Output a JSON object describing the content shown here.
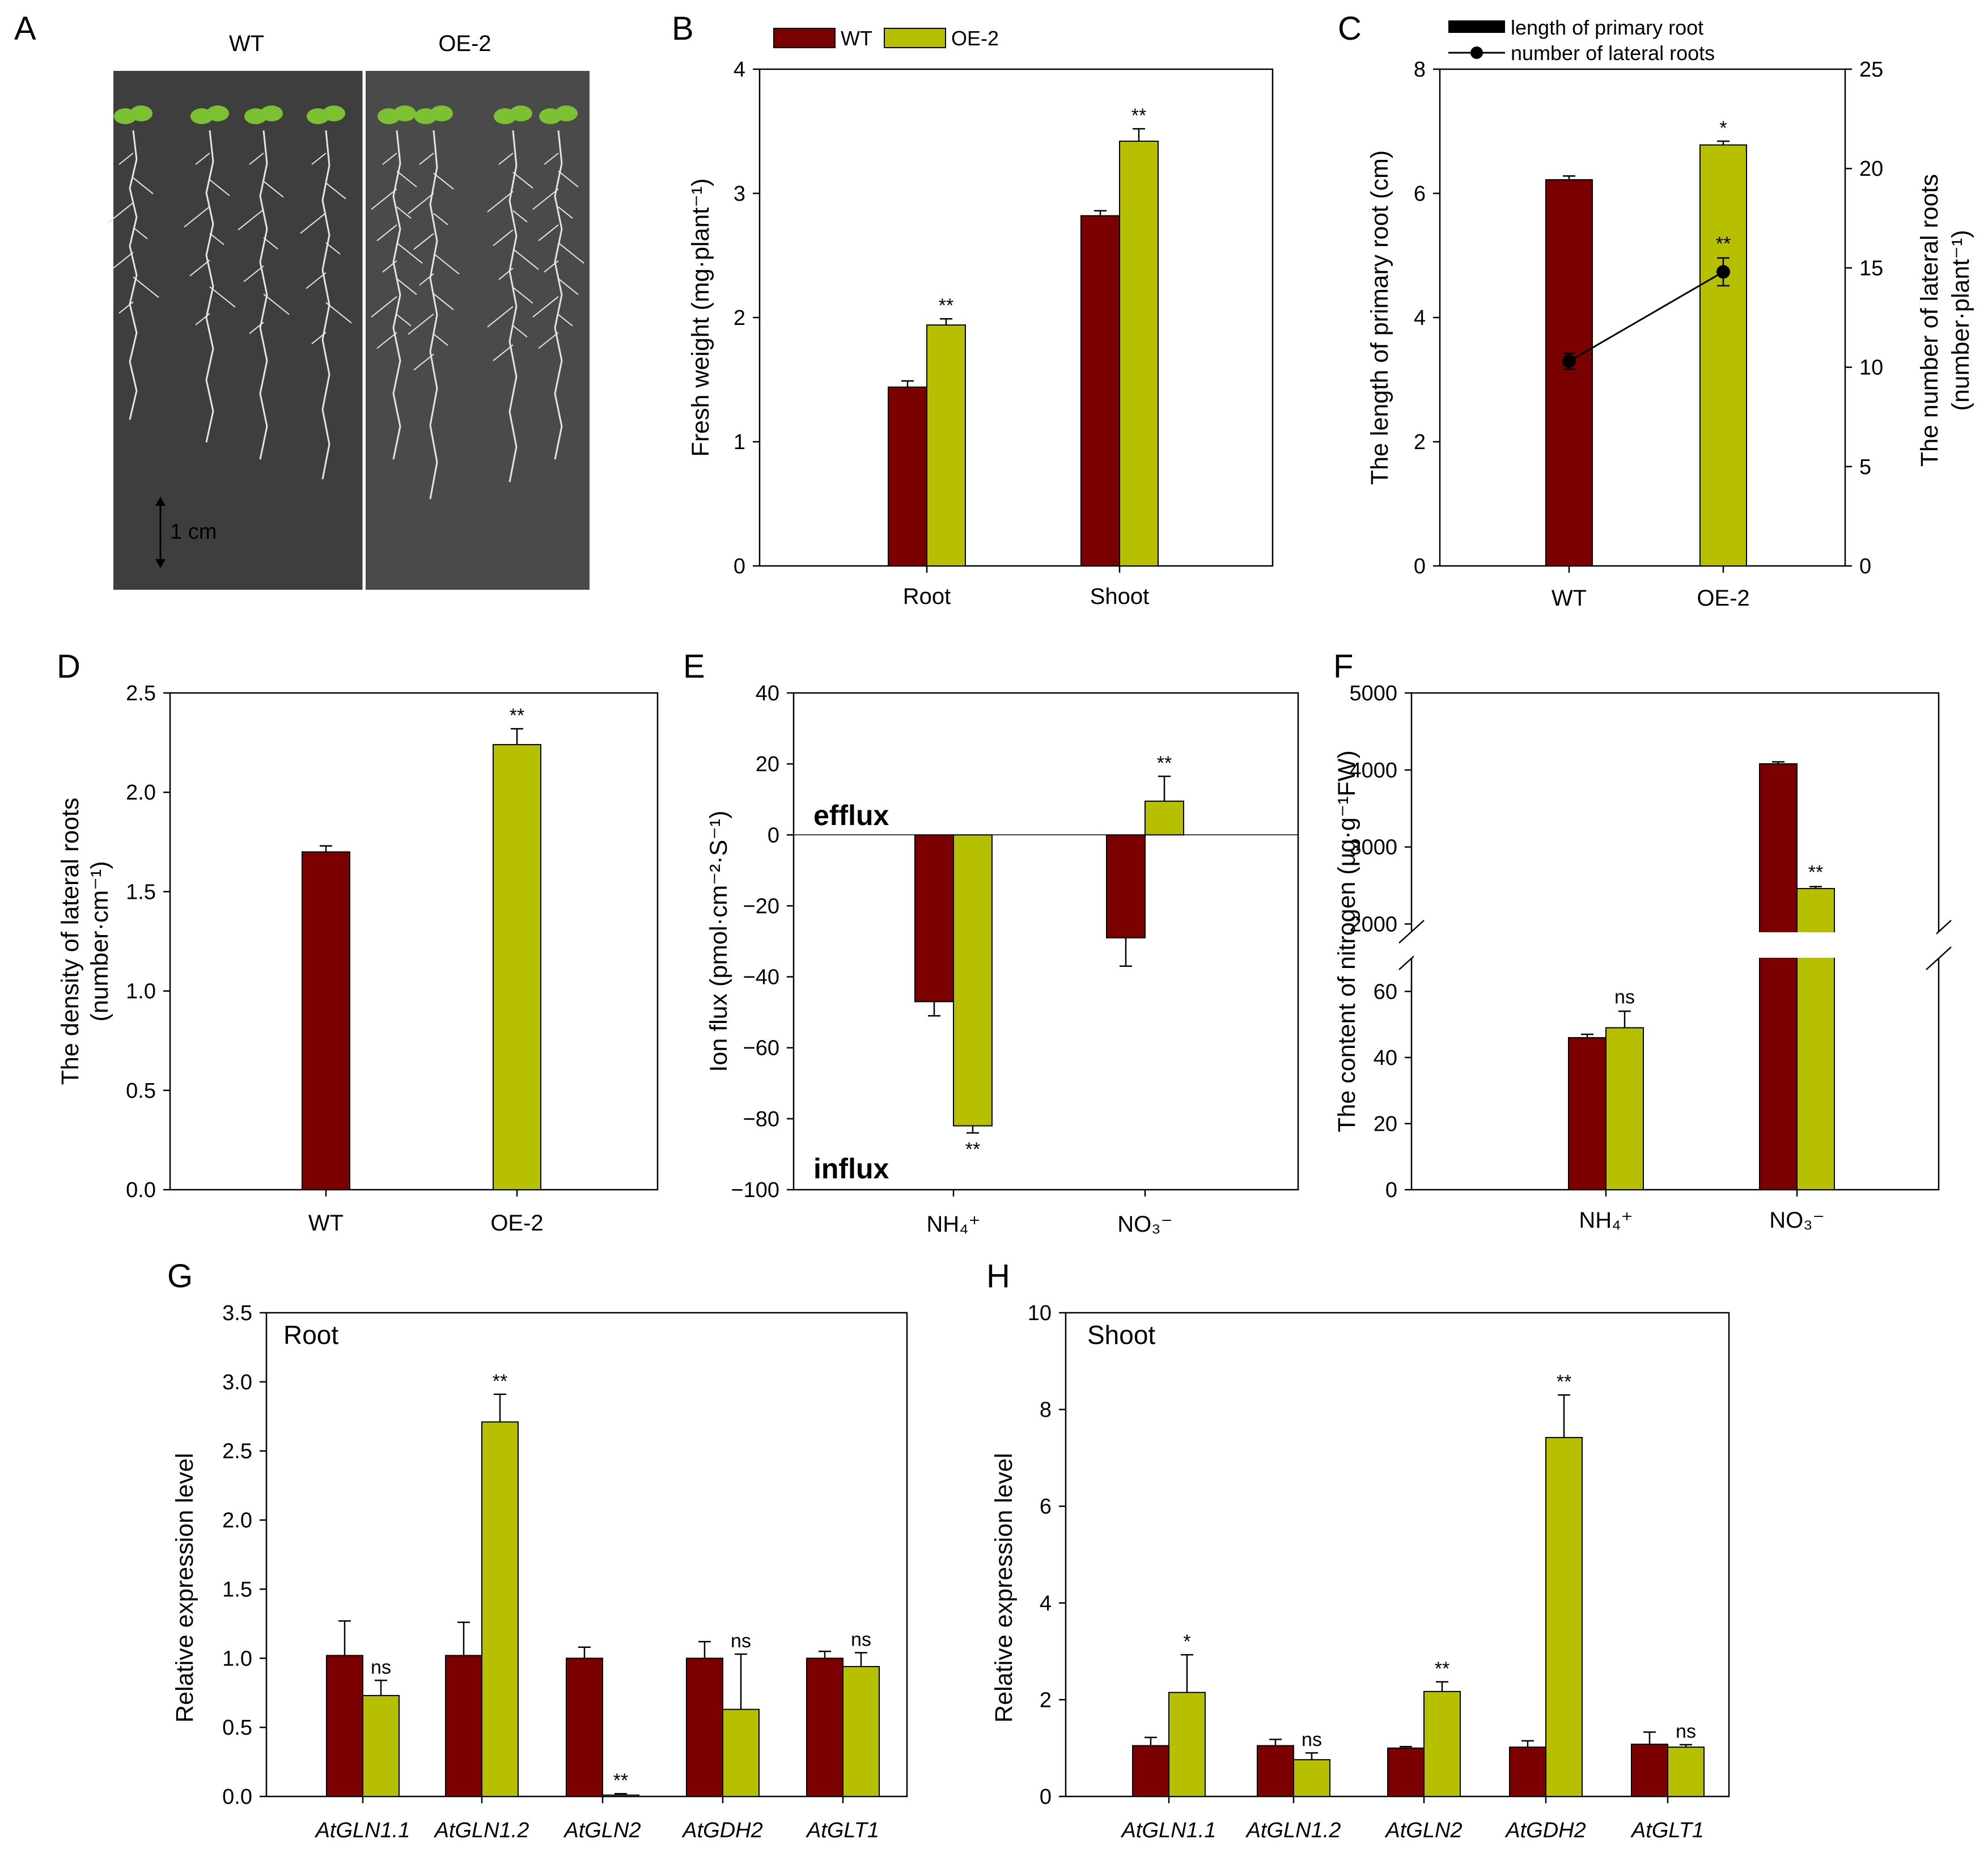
{
  "colors": {
    "wt": "#7b0000",
    "oe": "#b6c000",
    "photo_bg": "#3e3e3e",
    "photo_bg2": "#4a4a4a",
    "root": "#e4e4e4",
    "leaf": "#7cc132"
  },
  "panels": {
    "A": "A",
    "B": "B",
    "C": "C",
    "D": "D",
    "E": "E",
    "F": "F",
    "G": "G",
    "H": "H"
  },
  "legend": {
    "wt": "WT",
    "oe": "OE-2"
  },
  "photo": {
    "label_wt": "WT",
    "label_oe": "OE-2",
    "scale_text": "1 cm"
  },
  "chart_data": [
    {
      "panel": "B",
      "type": "bar",
      "categories": [
        "Root",
        "Shoot"
      ],
      "series": [
        {
          "name": "WT",
          "values": [
            1.44,
            2.82
          ],
          "errors": [
            0.05,
            0.04
          ],
          "sig": [
            "",
            ""
          ]
        },
        {
          "name": "OE-2",
          "values": [
            1.94,
            3.42
          ],
          "errors": [
            0.05,
            0.1
          ],
          "sig": [
            "**",
            "**"
          ]
        }
      ],
      "ylabel": "Fresh weight  (mg·plant⁻¹)",
      "ylim": [
        0,
        4
      ],
      "yticks": [
        "0",
        "1",
        "2",
        "3",
        "4"
      ]
    },
    {
      "panel": "C",
      "type": "bar",
      "categories": [
        "WT",
        "OE-2"
      ],
      "bars": {
        "name": "length of primary root",
        "values": [
          6.22,
          6.78
        ],
        "errors": [
          0.06,
          0.06
        ],
        "sig": [
          "",
          "*"
        ]
      },
      "line": {
        "name": "number of lateral roots",
        "values": [
          10.3,
          14.8
        ],
        "errors": [
          0.4,
          0.7
        ],
        "sig": [
          "",
          "**"
        ]
      },
      "ylabel": "The length of primary root  (cm)",
      "ylabel2_line1": "The number of lateral roots",
      "ylabel2_line2": "(number·plant⁻¹)",
      "ylim": [
        0,
        8
      ],
      "yticks": [
        "0",
        "2",
        "4",
        "6",
        "8"
      ],
      "y2lim": [
        0,
        25
      ],
      "y2ticks": [
        "0",
        "5",
        "10",
        "15",
        "20",
        "25"
      ]
    },
    {
      "panel": "D",
      "type": "bar",
      "categories": [
        "WT",
        "OE-2"
      ],
      "values": [
        1.7,
        2.24
      ],
      "errors": [
        0.03,
        0.08
      ],
      "sig": [
        "",
        "**"
      ],
      "ylabel_line1": "The density of lateral roots",
      "ylabel_line2": "(number·cm⁻¹)",
      "ylim": [
        0,
        2.5
      ],
      "yticks": [
        "0.0",
        "0.5",
        "1.0",
        "1.5",
        "2.0",
        "2.5"
      ]
    },
    {
      "panel": "E",
      "type": "bar",
      "categories": [
        "NH₄⁺",
        "NO₃⁻"
      ],
      "series": [
        {
          "name": "WT",
          "values": [
            -47,
            -29
          ],
          "errors": [
            4,
            8
          ],
          "sig": [
            "",
            ""
          ]
        },
        {
          "name": "OE-2",
          "values": [
            -82,
            9.5
          ],
          "errors": [
            2,
            7
          ],
          "sig": [
            "**",
            "**"
          ]
        }
      ],
      "ylabel": "Ion flux (pmol·cm⁻²·S⁻¹)",
      "efflux_label": "efflux",
      "influx_label": "influx",
      "ylim": [
        -100,
        40
      ],
      "yticks": [
        "−100",
        "−80",
        "−60",
        "−40",
        "−20",
        "0",
        "20",
        "40"
      ]
    },
    {
      "panel": "F",
      "type": "bar",
      "categories": [
        "NH₄⁺",
        "NO₃⁻"
      ],
      "series": [
        {
          "name": "WT",
          "values": [
            46,
            4080
          ],
          "errors": [
            1,
            25
          ],
          "sig": [
            "",
            ""
          ]
        },
        {
          "name": "OE-2",
          "values": [
            49,
            2460
          ],
          "errors": [
            5,
            25
          ],
          "sig": [
            "ns",
            "**"
          ]
        }
      ],
      "ylabel": "The content of nitrogen (μg·g⁻¹FW)",
      "broken_axis": {
        "lower": [
          0,
          70
        ],
        "upper": [
          1900,
          5000
        ]
      },
      "yticks_lower": [
        "0",
        "20",
        "40",
        "60"
      ],
      "yticks_upper": [
        "2000",
        "3000",
        "4000",
        "5000"
      ]
    },
    {
      "panel": "G",
      "type": "bar",
      "title": "Root",
      "categories": [
        "AtGLN1.1",
        "AtGLN1.2",
        "AtGLN2",
        "AtGDH2",
        "AtGLT1"
      ],
      "series": [
        {
          "name": "WT",
          "values": [
            1.02,
            1.02,
            1.0,
            1.0,
            1.0
          ],
          "errors": [
            0.25,
            0.24,
            0.08,
            0.12,
            0.05
          ],
          "sig": [
            "",
            "",
            "",
            "",
            ""
          ]
        },
        {
          "name": "OE-2",
          "values": [
            0.73,
            2.71,
            0.01,
            0.63,
            0.94
          ],
          "errors": [
            0.11,
            0.2,
            0.01,
            0.4,
            0.1
          ],
          "sig": [
            "ns",
            "**",
            "**",
            "ns",
            "ns"
          ]
        }
      ],
      "ylabel": "Relative expression level",
      "ylim": [
        0,
        3.5
      ],
      "yticks": [
        "0.0",
        "0.5",
        "1.0",
        "1.5",
        "2.0",
        "2.5",
        "3.0",
        "3.5"
      ]
    },
    {
      "panel": "H",
      "type": "bar",
      "title": "Shoot",
      "categories": [
        "AtGLN1.1",
        "AtGLN1.2",
        "AtGLN2",
        "AtGDH2",
        "AtGLT1"
      ],
      "series": [
        {
          "name": "WT",
          "values": [
            1.05,
            1.05,
            1.0,
            1.02,
            1.08
          ],
          "errors": [
            0.17,
            0.13,
            0.03,
            0.13,
            0.25
          ],
          "sig": [
            "",
            "",
            "",
            "",
            ""
          ]
        },
        {
          "name": "OE-2",
          "values": [
            2.15,
            0.76,
            2.17,
            7.42,
            1.02
          ],
          "errors": [
            0.78,
            0.14,
            0.2,
            0.88,
            0.05
          ],
          "sig": [
            "*",
            "ns",
            "**",
            "**",
            "ns"
          ]
        }
      ],
      "ylabel": "Relative expression level",
      "ylim": [
        0,
        10
      ],
      "yticks": [
        "0",
        "2",
        "4",
        "6",
        "8",
        "10"
      ]
    }
  ]
}
